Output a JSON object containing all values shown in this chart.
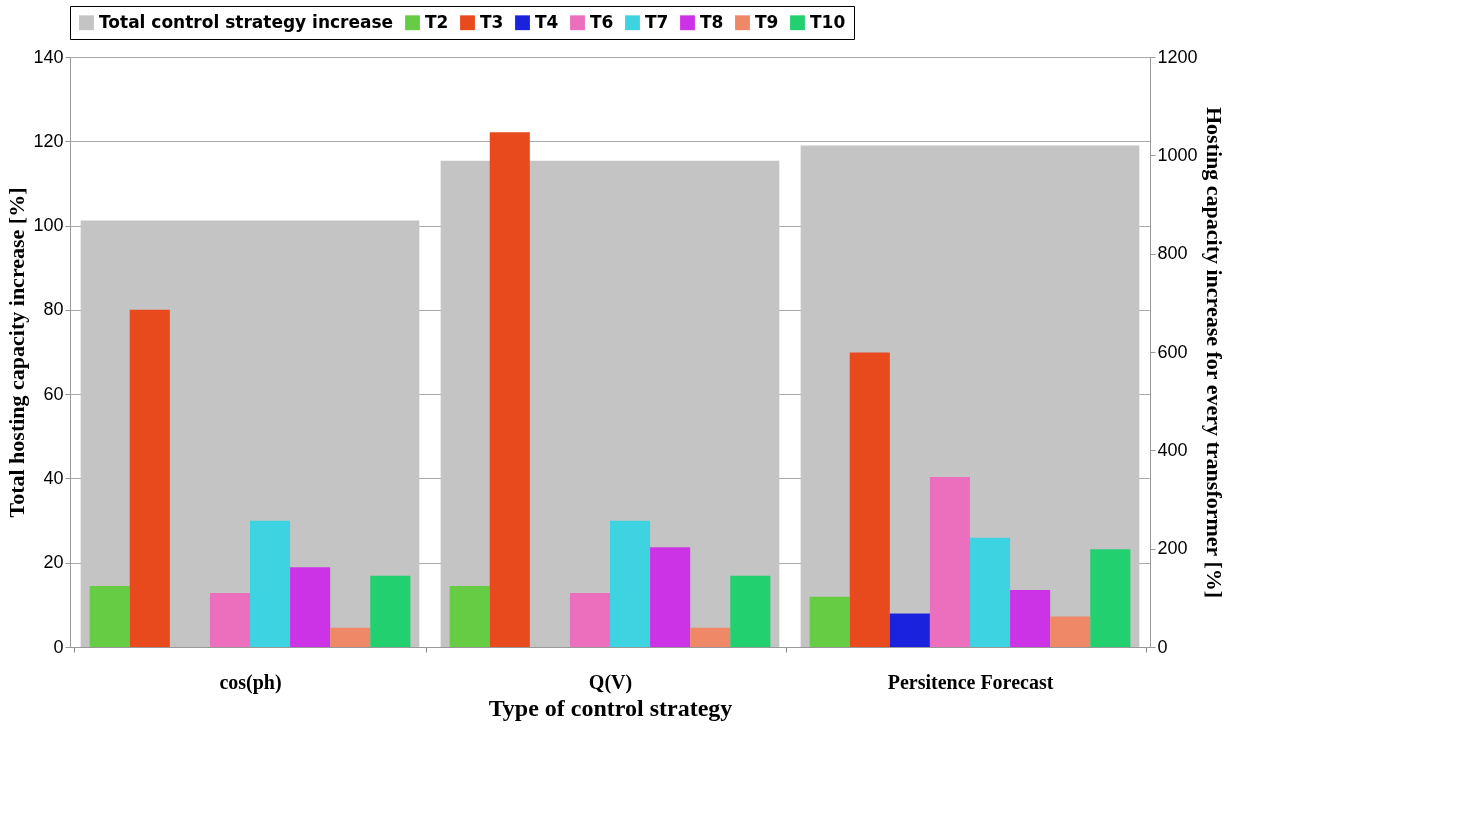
{
  "chart_data": {
    "type": "bar",
    "xlabel": "Type of control strategy",
    "ylabel": "Total hosting capacity increase [%]",
    "y2label": "Hosting capacity increase for every transformer [%]",
    "categories": [
      "cos(ph)",
      "Q(V)",
      "Persitence Forecast"
    ],
    "series": [
      {
        "name": "Total control strategy increase",
        "color": "#c4c4c4",
        "values": [
          101.2,
          115.4,
          119.0
        ]
      },
      {
        "name": "T2",
        "color": "#66cc44",
        "axis": "y2",
        "values": [
          124,
          124,
          102
        ]
      },
      {
        "name": "T3",
        "color": "#e84a1e",
        "axis": "y2",
        "values": [
          686,
          1047,
          599
        ]
      },
      {
        "name": "T4",
        "color": "#1a22dd",
        "axis": "y2",
        "values": [
          0,
          0,
          68
        ]
      },
      {
        "name": "T6",
        "color": "#ec6fbe",
        "axis": "y2",
        "values": [
          110,
          110,
          346
        ]
      },
      {
        "name": "T7",
        "color": "#3dd3e0",
        "axis": "y2",
        "values": [
          257,
          257,
          222
        ]
      },
      {
        "name": "T8",
        "color": "#cc33e6",
        "axis": "y2",
        "values": [
          162,
          203,
          116
        ]
      },
      {
        "name": "T9",
        "color": "#ee8866",
        "axis": "y2",
        "values": [
          39,
          39,
          62
        ]
      },
      {
        "name": "T10",
        "color": "#22d070",
        "axis": "y2",
        "values": [
          145,
          145,
          199
        ]
      }
    ],
    "ylim": [
      0,
      140
    ],
    "yticks": [
      0,
      20,
      40,
      60,
      80,
      100,
      120,
      140
    ],
    "y2lim": [
      0,
      1200
    ],
    "y2ticks": [
      0,
      200,
      400,
      600,
      800,
      1000,
      1200
    ],
    "grid": "y",
    "legend": "top"
  }
}
